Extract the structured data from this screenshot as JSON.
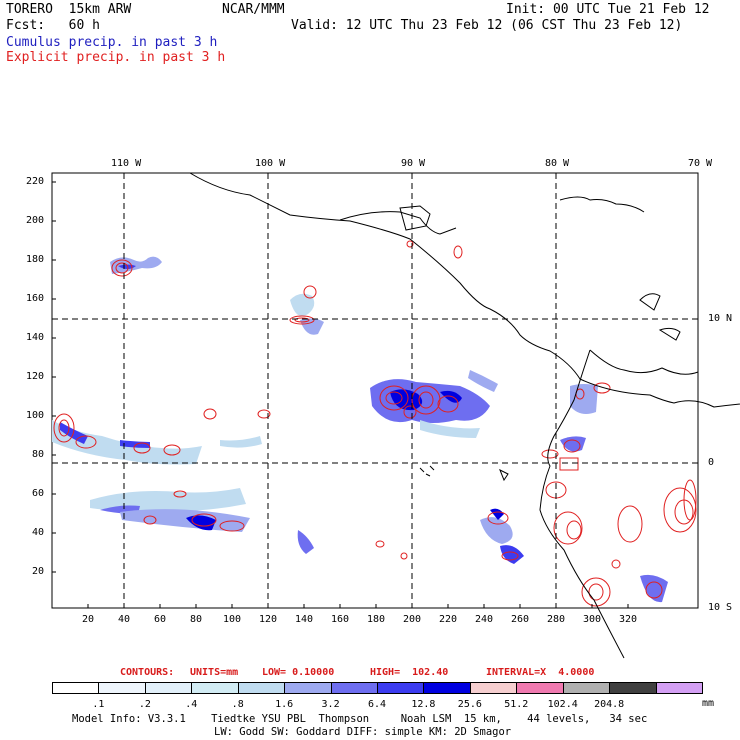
{
  "header": {
    "model": "TORERO  15km ARW",
    "org": "NCAR/MMM",
    "init": "Init: 00 UTC Tue 21 Feb 12",
    "fcst": "Fcst:   60 h",
    "valid": "Valid: 12 UTC Thu 23 Feb 12 (06 CST Thu 23 Feb 12)",
    "field_cumulus": "Cumulus precip. in past 3 h",
    "field_explicit": "Explicit precip. in past 3 h"
  },
  "axes": {
    "lon_labels": [
      "110 W",
      "100 W",
      "90 W",
      "80 W",
      "70 W"
    ],
    "lat_labels": [
      "10 N",
      "0",
      "10 S"
    ],
    "y_ticks": [
      "220",
      "200",
      "180",
      "160",
      "140",
      "120",
      "100",
      "80",
      "60",
      "40",
      "20"
    ],
    "x_ticks": [
      "20",
      "40",
      "60",
      "80",
      "100",
      "120",
      "140",
      "160",
      "180",
      "200",
      "220",
      "240",
      "260",
      "280",
      "300",
      "320"
    ]
  },
  "contour_info": {
    "contours": "CONTOURS:",
    "units": "UNITS=mm",
    "low": "LOW= 0.10000",
    "high": "HIGH=  102.40",
    "interval": "INTERVAL=X  4.0000"
  },
  "legend": {
    "unit": "mm",
    "labels": [
      ".1",
      ".2",
      ".4",
      ".8",
      "1.6",
      "3.2",
      "6.4",
      "12.8",
      "25.6",
      "51.2",
      "102.4",
      "204.8"
    ],
    "colors": [
      "#ffffff",
      "#eef5fc",
      "#e2f0fa",
      "#d2ecf4",
      "#c0dcf0",
      "#9eaaf0",
      "#6e6ef0",
      "#3c3cf0",
      "#0000e0",
      "#f6cfd0",
      "#f07ab0",
      "#b0b0b0",
      "#404040",
      "#d4a0f4"
    ]
  },
  "footer": {
    "line1": "Model Info: V3.3.1    Tiedtke YSU PBL  Thompson     Noah LSM  15 km,    44 levels,   34 sec",
    "line2": "LW: Godd SW: Goddard DIFF: simple KM: 2D Smagor"
  }
}
